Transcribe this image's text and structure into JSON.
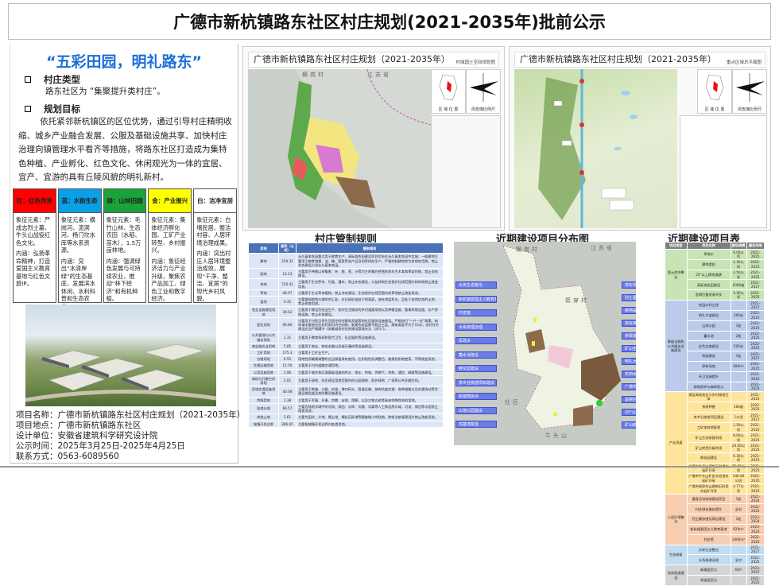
{
  "title": "广德市新杭镇路东社区村庄规划(2021-2035年)批前公示",
  "left": {
    "slogan": "“五彩田园，明礼路东”",
    "sections": [
      {
        "heading": "村庄类型",
        "text": "路东社区为 “集聚提升类村庄”。"
      },
      {
        "heading": "规划目标",
        "text": "依托紧邻新杭镇区的区位优势，通过引导村庄精明收缩、城乡产业融合发展、公服及基础设施共享、加快村庄治理向镇管理水平看齐等措施，将路东社区打造成为集特色种植、产业孵化、红色文化、休闲观光为一体的宜居、宜产、宜游的具有丘陵风貌的明礼新村。"
      }
    ],
    "cards": [
      {
        "title": "红：红色传承",
        "color": "#ff0000",
        "symbol": "象征元素：严成志烈士墓、牛头山战役红色文化。",
        "meaning": "内涵：弘扬革命精神，打造爱国主义教育基地与红色文旅IP。"
      },
      {
        "title": "蓝：水韵生态",
        "color": "#0aa0e6",
        "symbol": "象征元素：横岗河、流洞河、杨门坎水库等水系资源。",
        "meaning": "内涵：突出“水清岸绿”的生态基底，发展滨水休闲、水利科普和生态农业。"
      },
      {
        "title": "绿：山林田园",
        "color": "#1aa33a",
        "symbol": "象征元素：毛竹山林、生态农田（水稻、苗木），1.5万亩林地。",
        "meaning": "内涵：强调绿色发展与可持续农业，推动“林下经济”和有机种植。"
      },
      {
        "title": "金：产业振兴",
        "color": "#ffff00",
        "symbol": "象征元素：集体经济孵化园、工矿产业转型、乡村振兴。",
        "meaning": "内涵：象征经济活力与产业升级，聚焦农产品加工、绿色工业和数字经济。"
      },
      {
        "title": "白：洁净宜居",
        "color": "#ffffff",
        "symbol": "象征元素：白墙民居、整洁村容、人居环境治理成果。",
        "meaning": "内涵：突出村庄人居环境整治成效，展现“干净、整洁、宜居”的现代乡村风貌。"
      }
    ],
    "info": [
      "项目名称：广德市新杭镇路东社区村庄规划（2021-2035年）",
      "项目地点：广德市新杭镇路东社区",
      "设计单位：安徽省建筑科学研究设计院",
      "公示时间：2025年3月25日-2025年4月25日",
      "联系方式：0563-6089560"
    ]
  },
  "map1": {
    "title": "广德市新杭镇路东社区村庄规划（2021-2035年）",
    "subtitle": "村域国土空间规划图",
    "location_label": "区 域 位 置",
    "wind_label": "风玫瑰比例尺",
    "places": [
      "横岗村",
      "江苏省"
    ]
  },
  "map2": {
    "title": "广德市新杭镇路东社区村庄规划（2021-2035年）",
    "subtitle": "重点区域总平面图",
    "location_label": "区 域 位 置",
    "wind_label": "风玫瑰比例尺"
  },
  "rules": {
    "title": "村庄管制规则",
    "headers": [
      "用地",
      "面积（公顷）",
      "管制规则"
    ],
    "rows": [
      [
        "耕地",
        "259.32",
        "永久基本农田重点用于粮食生产，高标准农田建设项目优先在永久基本农田中实施；一般耕地主要用于粮食和棉、油、糖、蔬菜等农产品及饲草饲料生产，严格控制耕地转为其他农用地，禁止非农建设占用永久基本农田。"
      ],
      [
        "园地",
        "12.23",
        "主要用于种植以采集果、叶、根、茎、汁等为主的集约经营的多年生木本和草本作物，禁止非农建设。"
      ],
      [
        "林地",
        "720.41",
        "主要用于生长乔木、竹类、灌木，禁止非农建设，公益林和生态保护红线范围内的林地禁止改变用途。"
      ],
      [
        "草地",
        "46.97",
        "主要用于生长草本植物，禁止非农建设，生态保护红线范围内的草地禁止改变用途。"
      ],
      [
        "湿地",
        "0.35",
        "主要指陆地和水域的交汇处，水位接近或处于地表面，或有浅层积水，且处于自然状态的土地，禁止改变用途。"
      ],
      [
        "农业设施建设用地",
        "30.62",
        "主要用于建设为农业生产、农村生活服务的乡村道路用地以及种植设施、畜禽养殖设施、水产养殖设施，禁止非农建设。"
      ],
      [
        "居住用地",
        "90.86",
        "主要用于村民日常生活居住的宅基地及配套的社区服务设施建设。严格执行“一户一宅”政策，新申请宅基地应优先利用村内空闲地；新建农房层数不超过三层，建筑高度不大于12米；农村住宅建设应当严格遵守《安徽省农村住房建设管理办法（试行）》。"
      ],
      [
        "公共管理与公共服务用地",
        "1.31",
        "主要用于教育科研和医疗卫生、社会福利等设施建设。"
      ],
      [
        "商业服务业用地",
        "5.85",
        "主要用于商业、商务金融以及娱乐康体等设施建设。"
      ],
      [
        "工矿用地",
        "175.3",
        "主要用于工矿业生产。"
      ],
      [
        "仓储用地",
        "6.55",
        "用地性质确需调整时应当保留原有使用，在用地性质调整后，按规划用地使用，不得改变用途。"
      ],
      [
        "交通运输用地",
        "11.56",
        "主要用于村内道路交通用地。"
      ],
      [
        "公用设施用地",
        "1.96",
        "主要用于城乡和区域基础设施的供水、排水、供电、供燃气、供热、通信、邮政等设施建设。"
      ],
      [
        "绿地与开敞空间用地",
        "2.01",
        "主要用于绿地、村庄建设用地范围内的公园绿地、防护绿地、广场等公共开敞空间。"
      ],
      [
        "区域交通设施用地",
        "40.08",
        "主要用于铁路、公路、机场、港口码头、管道运输、城市轨道交通、各种道路以及交通场站等交通运输设施及其附属设施建设。"
      ],
      [
        "特殊用地",
        "1.38",
        "主要用于军事、外事、宗教、安保、殡葬，以及文物古迹等具有特殊性质的用地。"
      ],
      [
        "陆地水域",
        "66.57",
        "主要为陆地水域中的河流、湖泊、水库、坑塘、沟渠等人工和自然水域，河流、湖泊等水面禁止改变用途。"
      ],
      [
        "其他土地",
        "1.61",
        "主要为田坎、沙地、裸土地、裸岩石砾地等植被稀少的陆地，除依法依规建设外禁止改变用途。"
      ],
      [
        "城镇开发边界",
        "386.65",
        "主要指城镇开发边界内各类用地。"
      ]
    ]
  },
  "project_map": {
    "title": "近期建设项目分布图",
    "places": [
      "横岗村",
      "江苏省",
      "箭穿村",
      "牛头山",
      "社区"
    ],
    "left_labels": [
      "水库生态整治",
      "新杭镇爱国主义教育基地",
      "村史馆",
      "水系梳理治理",
      "旱改水",
      "蓄水池建设",
      "孵化园建设",
      "茶乡谷旅游项目建设",
      "新建居民点",
      "山地公园建设",
      "宅基地复垦"
    ],
    "right_labels": [
      "停车场地建设",
      "烈士墓修缮及周边建设",
      "耕地提质",
      "高标准农田建设",
      "桥梁建设",
      "矿山生态修复利用",
      "明礼大道建设",
      "农田水利工程",
      "广德市牛头山矿区水泥用灰岩矿开采",
      "宜耕后备资源开发",
      "25°以上耕地退耕",
      "矿山转型升级利用"
    ]
  },
  "projects": {
    "title": "近期建设项目表",
    "headers": [
      "项目类型",
      "项目名称",
      "建设规模",
      "建设年限"
    ],
    "groups": [
      {
        "type": "国土综合整治",
        "color": "#c9e4b4",
        "items": [
          [
            "旱改水",
            "6.00公顷",
            "2021-2025"
          ],
          [
            "耕地提质",
            "1.30公顷",
            "2021-2025"
          ],
          [
            "25°以上耕地退耕",
            "2.50公顷",
            "2021-2025"
          ],
          [
            "高标准农田建设",
            "2000亩",
            "2021-2027"
          ],
          [
            "宜耕后备资源开发",
            "3.30公顷",
            "2021-2025"
          ]
        ]
      },
      {
        "type": "基础设施和公共服务设施建设",
        "color": "#bccbea",
        "items": [
          [
            "农田水利工程",
            "-",
            "2021-2027"
          ],
          [
            "明礼大道建设",
            "300米",
            "2021-2025"
          ],
          [
            "山地公园",
            "1处",
            "2022-2025"
          ],
          [
            "蓄水池",
            "2处",
            "2022-2025"
          ],
          [
            "红色文旅建设",
            "500米",
            "2022-2025"
          ],
          [
            "桥梁建设",
            "1处",
            "2021-2027"
          ],
          [
            "停车场地",
            "400m²",
            "2022-2025"
          ],
          [
            "环卫设施提升",
            "-",
            "2021-2025"
          ],
          [
            "林地保护与森林防火",
            "-",
            "2021-2025"
          ]
        ]
      },
      {
        "type": "产业发展",
        "color": "#ffe59c",
        "items": [
          [
            "建设高效农业与乡村旅游主体",
            "-",
            "2021-2025"
          ],
          [
            "茶树种植",
            "100亩",
            "2022-2025"
          ],
          [
            "茶乡谷旅游项目建设",
            "1公顷",
            "2021-2027"
          ],
          [
            "工矿废弃地复垦",
            "1.50公顷",
            "2021-2025"
          ],
          [
            "矿山生态修复利用",
            "8.00公顷",
            "2021-2025"
          ],
          [
            "矿山转型升级利用",
            "24.00公顷",
            "2021-2025"
          ],
          [
            "孵化园建设",
            "6.30公顷",
            "2021-2025"
          ],
          [
            "广德市牛鼻山建筑石料用灰岩矿开采",
            "76.89公顷",
            "2021-2025"
          ],
          [
            "广德市牛头山矿区水泥用灰岩矿开采",
            "146.40公顷",
            "2021-2035"
          ],
          [
            "广德市闻家村山建筑石料用灰岩矿开采",
            "4.77公顷",
            "2021-2025"
          ]
        ]
      },
      {
        "type": "人居环境整治",
        "color": "#f8cdb0",
        "items": [
          [
            "健身活动场地建设项目",
            "1处",
            "2021-2024"
          ],
          [
            "村庄绿化美化提升",
            "全村",
            "2022-2025"
          ],
          [
            "烈士墓修缮及周边建设",
            "1处",
            "2023-2024"
          ],
          [
            "新杭镇爱国主义教育基地",
            "920m²",
            "2023-2024"
          ],
          [
            "村史馆",
            "1000m²",
            "2022-2025"
          ]
        ]
      },
      {
        "type": "生态修复",
        "color": "#c2dcf0",
        "items": [
          [
            "水库生态整治",
            "-",
            "2021-2027"
          ],
          [
            "水系梳理治理",
            "全村",
            "2021-2025"
          ]
        ]
      },
      {
        "type": "农房改造建设",
        "color": "#d4d4d4",
        "items": [
          [
            "新建居民点",
            "40户",
            "2023-2027"
          ],
          [
            "改造居民点",
            "-",
            "2021-2025"
          ]
        ]
      }
    ]
  }
}
